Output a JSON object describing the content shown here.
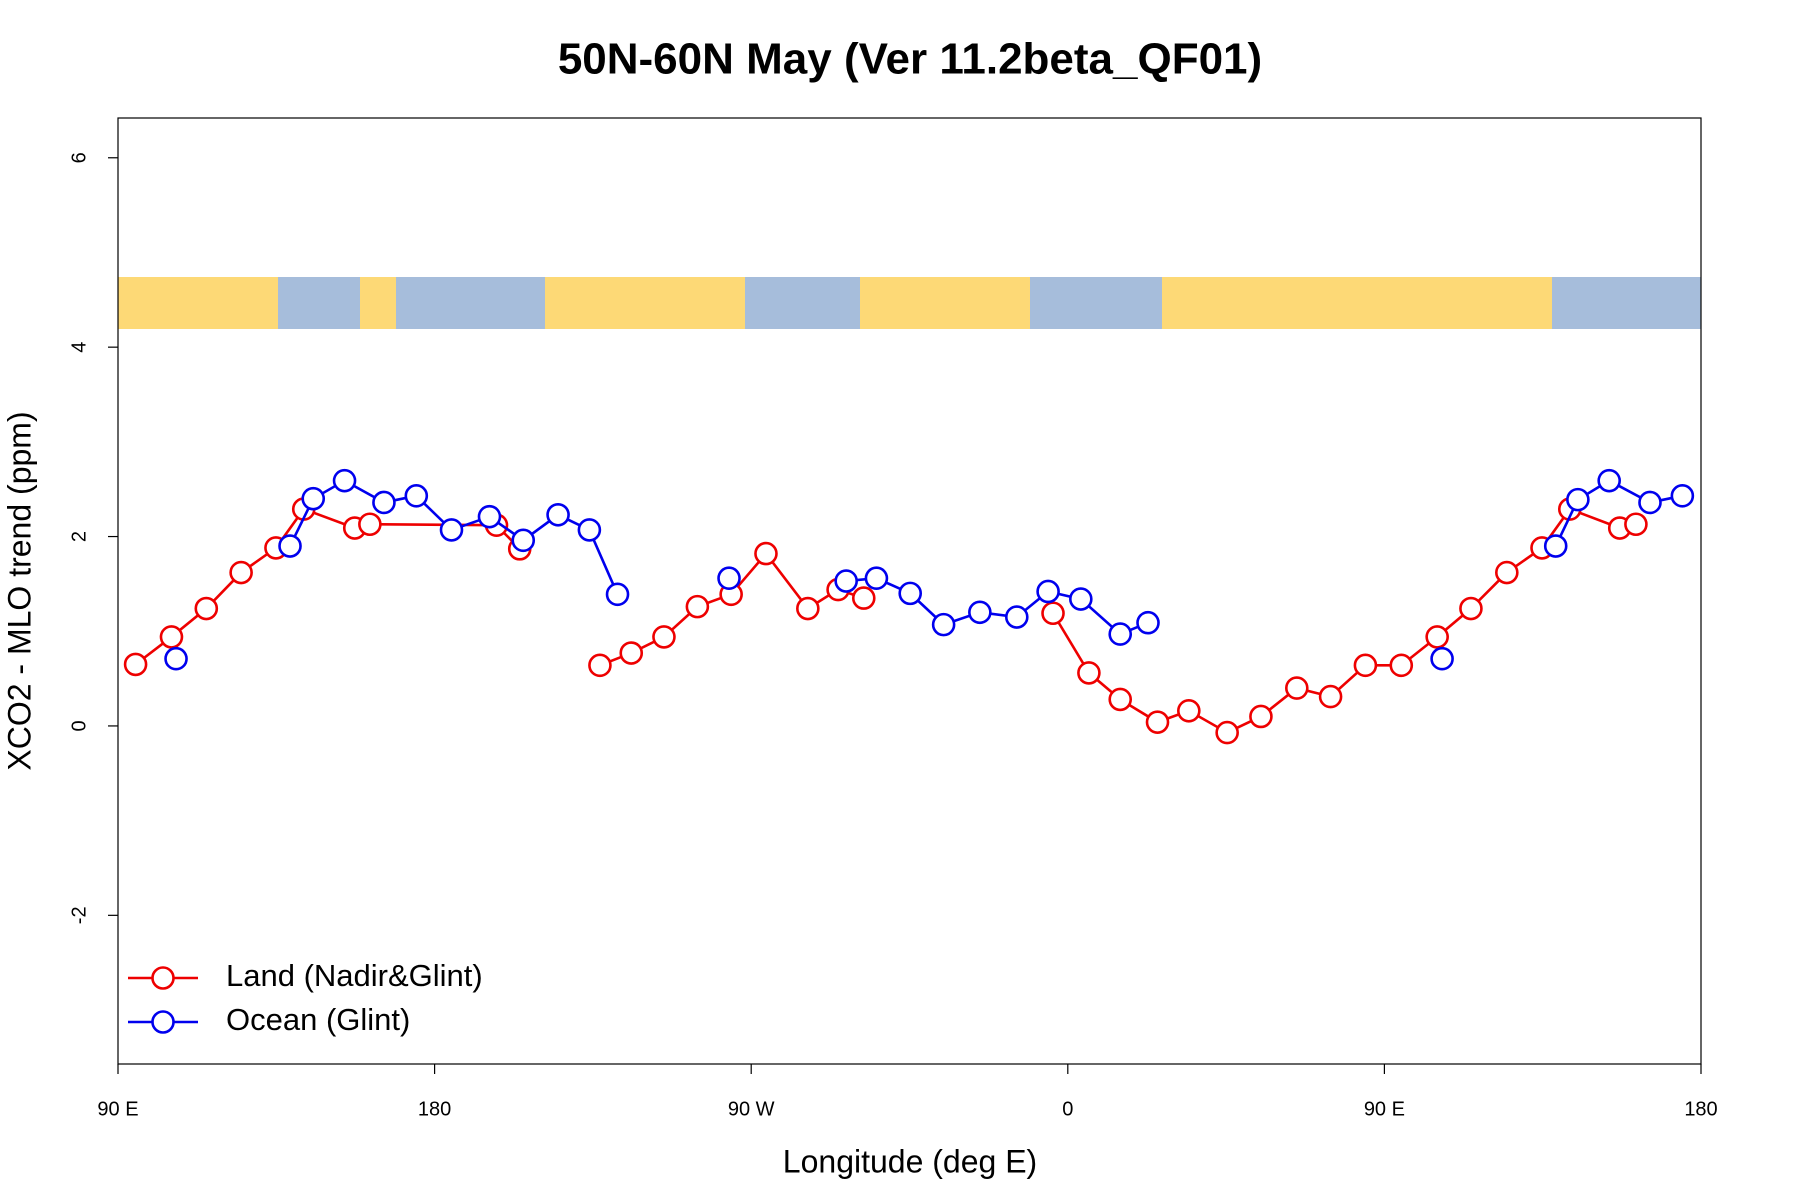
{
  "chart_data": {
    "type": "line",
    "title": "50N-60N May (Ver 11.2beta_QF01)",
    "xlabel": "Longitude (deg E)",
    "ylabel": "XCO2 - MLO trend (ppm)",
    "xlim": [
      90,
      540
    ],
    "ylim": [
      -3.57,
      6.42
    ],
    "xticks": [
      {
        "value": 90,
        "label": "90 E"
      },
      {
        "value": 180,
        "label": "180"
      },
      {
        "value": 270,
        "label": "90 W"
      },
      {
        "value": 360,
        "label": "0"
      },
      {
        "value": 450,
        "label": "90 E"
      },
      {
        "value": 540,
        "label": "180"
      }
    ],
    "yticks": [
      -2,
      0,
      2,
      4,
      6
    ],
    "legend": "bottom-left",
    "series": [
      {
        "name": "Land (Nadir&Glint)",
        "color": "#ee0000",
        "x": [
          95,
          105.2,
          115.1,
          125,
          134.9,
          142.8,
          157.3,
          161.6,
          197.6,
          204.2,
          null,
          227,
          235.9,
          245.2,
          254.7,
          264.3,
          274.2,
          286.1,
          294.7,
          302,
          null,
          355.8,
          366,
          374.9,
          385.5,
          394.4,
          405.3,
          414.9,
          425.1,
          434.7,
          444.6,
          454.8,
          465,
          474.6,
          484.8,
          494.8,
          502.7,
          516.9,
          521.5
        ],
        "values": [
          0.65,
          0.94,
          1.24,
          1.62,
          1.88,
          2.29,
          2.09,
          2.13,
          2.12,
          1.87,
          null,
          0.64,
          0.77,
          0.94,
          1.26,
          1.39,
          1.82,
          1.24,
          1.44,
          1.35,
          null,
          1.19,
          0.56,
          0.28,
          0.04,
          0.16,
          -0.07,
          0.1,
          0.4,
          0.31,
          0.64,
          0.64,
          0.94,
          1.24,
          1.62,
          1.88,
          2.29,
          2.09,
          2.13
        ]
      },
      {
        "name": "Ocean (Glint)",
        "color": "#0000ee",
        "x": [
          106.5,
          null,
          138.9,
          145.5,
          154.4,
          165.6,
          174.8,
          184.8,
          195.6,
          205.2,
          215.1,
          224,
          232,
          null,
          263.7,
          null,
          297,
          305.6,
          315.2,
          324.7,
          335,
          345.5,
          354.4,
          363.7,
          374.9,
          382.8,
          null,
          466.4,
          null,
          498.7,
          505,
          513.9,
          525.5,
          534.7
        ],
        "values": [
          0.71,
          null,
          1.9,
          2.4,
          2.59,
          2.36,
          2.43,
          2.07,
          2.21,
          1.96,
          2.23,
          2.07,
          1.39,
          null,
          1.56,
          null,
          1.53,
          1.56,
          1.4,
          1.07,
          1.2,
          1.15,
          1.42,
          1.34,
          0.97,
          1.09,
          null,
          0.71,
          null,
          1.9,
          2.39,
          2.59,
          2.36,
          2.43
        ]
      }
    ]
  }
}
